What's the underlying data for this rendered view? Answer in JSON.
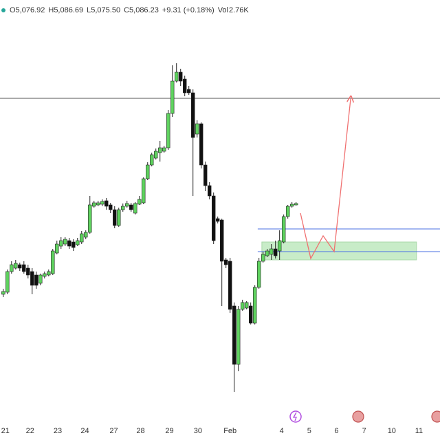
{
  "chart_data": {
    "type": "candlestick",
    "legend_items": [
      "O5,076.92",
      "H5,086.69",
      "L5,075.50",
      "C5,086.23",
      "+9.31 (+0.18%)",
      "Vol",
      "2.76K"
    ],
    "up_color": "#5fd35f",
    "down_color": "#111111",
    "open": [
      5021,
      5022.5,
      5037.5,
      5040,
      5042.5,
      5042.5,
      5040,
      5037.5,
      5035,
      5029,
      5034,
      5035,
      5036,
      5051,
      5056,
      5057.5,
      5060,
      5059,
      5057,
      5059,
      5062.5,
      5066,
      5085,
      5086,
      5086.5,
      5089,
      5086,
      5082.5,
      5071,
      5082.5,
      5085,
      5086,
      5080,
      5086.5,
      5087.5,
      5105,
      5115,
      5120,
      5124,
      5125,
      5127.5,
      5152.5,
      5176,
      5182.5,
      5177.5,
      5170,
      5167.5,
      5137.5,
      5145,
      5115,
      5100,
      5092.5,
      5076,
      5075,
      5046,
      5045,
      5012.5,
      4970,
      5010,
      5011,
      5012.5,
      5000,
      5026,
      5045,
      5049,
      5050,
      5054,
      5052.5,
      5059,
      5077.5,
      5085,
      5086
    ],
    "high": [
      5025,
      5039,
      5045,
      5046,
      5044,
      5045,
      5042.5,
      5040,
      5037.5,
      5036,
      5037.5,
      5039,
      5054,
      5060,
      5062.5,
      5062.5,
      5062,
      5061,
      5062,
      5067,
      5067.5,
      5092.5,
      5089,
      5089,
      5090,
      5091,
      5087.5,
      5085,
      5084,
      5087,
      5089,
      5087.5,
      5088,
      5092.5,
      5106,
      5117,
      5124,
      5127,
      5132.5,
      5129,
      5155,
      5187.5,
      5189,
      5185,
      5180,
      5172.5,
      5170,
      5147.5,
      5146,
      5117.5,
      5102.5,
      5095,
      5077.5,
      5076,
      5047.5,
      5047.5,
      5015,
      5012.5,
      5017,
      5016,
      5015,
      5027.5,
      5047.5,
      5052,
      5054,
      5057.5,
      5060,
      5067.5,
      5079,
      5086,
      5088,
      5088
    ],
    "low": [
      5019,
      5021,
      5036,
      5039,
      5038,
      5036,
      5032.5,
      5021,
      5025,
      5027.5,
      5032.5,
      5034,
      5035,
      5050,
      5054,
      5056,
      5054,
      5052.5,
      5056,
      5057.5,
      5061,
      5065,
      5084,
      5085,
      5085,
      5082.5,
      5080,
      5069,
      5070,
      5081,
      5084,
      5081,
      5079,
      5086,
      5086.5,
      5104,
      5114,
      5119,
      5117.5,
      5124,
      5126,
      5150,
      5175,
      5172.5,
      5165,
      5166,
      5092.5,
      5135,
      5112.5,
      5096,
      5090,
      5057.5,
      5072.5,
      5012.5,
      5040,
      5007.5,
      4950,
      4965,
      5009,
      5010,
      4999,
      4999,
      5025,
      5044,
      5048,
      5046,
      5047,
      5046,
      5058,
      5076,
      5084,
      5085.5
    ],
    "close": [
      5023,
      5037.5,
      5042.5,
      5043.5,
      5040,
      5037.5,
      5035,
      5027.5,
      5027.5,
      5035,
      5036,
      5037.5,
      5052.5,
      5057.5,
      5060,
      5061,
      5056,
      5055,
      5060,
      5065,
      5066,
      5086,
      5087.5,
      5087.5,
      5088.5,
      5085,
      5082.5,
      5071,
      5082.5,
      5085,
      5087,
      5082.5,
      5087,
      5090,
      5105,
      5115,
      5122.5,
      5125,
      5127.5,
      5127.5,
      5152.5,
      5176,
      5182.5,
      5176,
      5167.5,
      5167.5,
      5135,
      5145,
      5115,
      5100,
      5092.5,
      5060,
      5074,
      5045,
      5042.5,
      5010,
      4970,
      5010,
      5015,
      5015,
      5000,
      5026,
      5045,
      5050,
      5052.5,
      5054,
      5049,
      5060,
      5077.5,
      5085,
      5086.5,
      5087
    ],
    "xlim": [
      -0.8,
      105.9
    ],
    "ylim": [
      4930,
      5235
    ],
    "xticks": [
      {
        "value": 0.5,
        "label": "21"
      },
      {
        "value": 6.5,
        "label": "22"
      },
      {
        "value": 13.2,
        "label": "23"
      },
      {
        "value": 19.8,
        "label": "24"
      },
      {
        "value": 26.8,
        "label": "27"
      },
      {
        "value": 33.3,
        "label": "28"
      },
      {
        "value": 40.3,
        "label": "29"
      },
      {
        "value": 47.2,
        "label": "30"
      },
      {
        "value": 55,
        "label": "Feb"
      },
      {
        "value": 67.5,
        "label": "4"
      },
      {
        "value": 74.2,
        "label": "5"
      },
      {
        "value": 80.8,
        "label": "6"
      },
      {
        "value": 87.5,
        "label": "7"
      },
      {
        "value": 94.2,
        "label": "10"
      },
      {
        "value": 100.8,
        "label": "11"
      }
    ],
    "hlines": [
      {
        "value": 5163.5,
        "color": "#555555",
        "from": -0.8
      },
      {
        "value": 5068.5,
        "color": "#4a6fe3",
        "from": 61.7
      },
      {
        "value": 5052,
        "color": "#4a6fe3",
        "from": 61.7
      }
    ],
    "zone": {
      "x": [
        62.7,
        100.2
      ],
      "y": [
        5046,
        5059
      ],
      "color": "#c8ecc8"
    }
  }
}
